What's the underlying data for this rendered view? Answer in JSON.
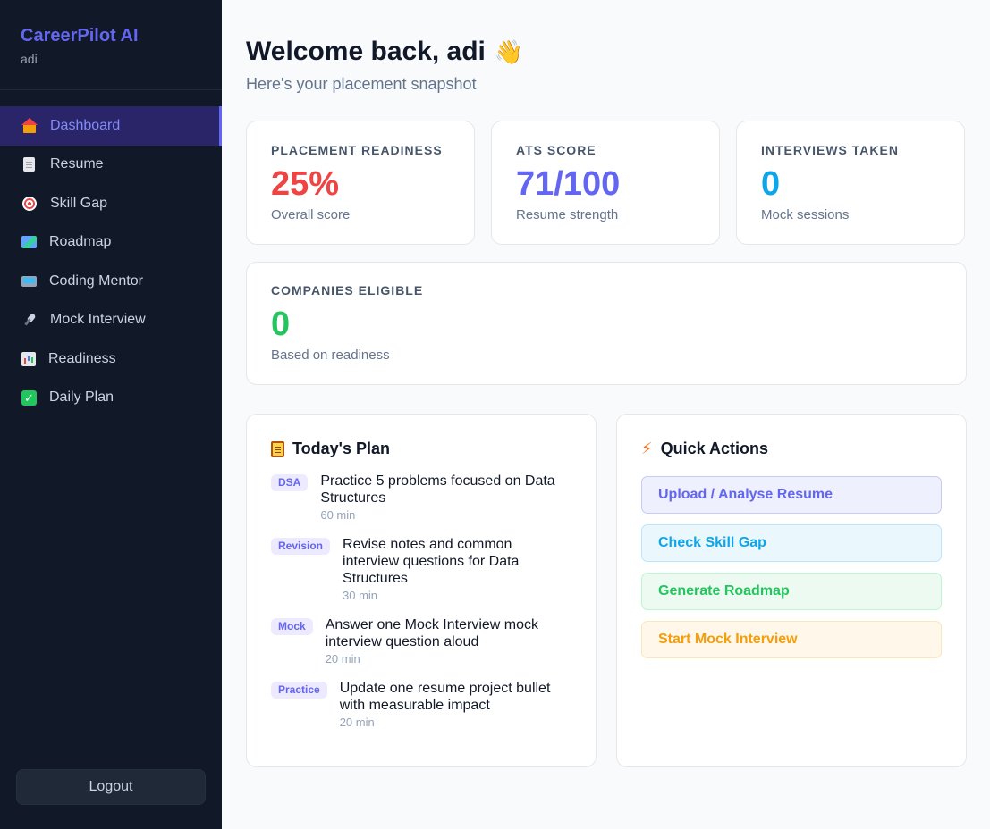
{
  "sidebar": {
    "brand": "CareerPilot AI",
    "user": "adi",
    "items": [
      {
        "label": "Dashboard",
        "icon": "home-icon",
        "active": true
      },
      {
        "label": "Resume",
        "icon": "document-icon"
      },
      {
        "label": "Skill Gap",
        "icon": "target-icon"
      },
      {
        "label": "Roadmap",
        "icon": "map-icon"
      },
      {
        "label": "Coding Mentor",
        "icon": "laptop-icon"
      },
      {
        "label": "Mock Interview",
        "icon": "microphone-icon"
      },
      {
        "label": "Readiness",
        "icon": "bar-chart-icon"
      },
      {
        "label": "Daily Plan",
        "icon": "checkmark-icon"
      }
    ],
    "logout": "Logout"
  },
  "header": {
    "title": "Welcome back, adi",
    "wave": "👋",
    "subtitle": "Here's your placement snapshot"
  },
  "stats": [
    {
      "label": "Placement Readiness",
      "value": "25%",
      "sub": "Overall score",
      "color": "#ef4444"
    },
    {
      "label": "ATS Score",
      "value": "71/100",
      "sub": "Resume strength",
      "color": "#6366f1"
    },
    {
      "label": "Interviews Taken",
      "value": "0",
      "sub": "Mock sessions",
      "color": "#0ea5e9"
    }
  ],
  "companies": {
    "label": "Companies Eligible",
    "value": "0",
    "sub": "Based on readiness",
    "color": "#22c55e"
  },
  "plan": {
    "title": "Today's Plan",
    "items": [
      {
        "tag": "DSA",
        "text": "Practice 5 problems focused on Data Structures",
        "time": "60 min"
      },
      {
        "tag": "Revision",
        "text": "Revise notes and common interview questions for Data Structures",
        "time": "30 min"
      },
      {
        "tag": "Mock",
        "text": "Answer one Mock Interview mock interview question aloud",
        "time": "20 min"
      },
      {
        "tag": "Practice",
        "text": "Update one resume project bullet with measurable impact",
        "time": "20 min"
      }
    ]
  },
  "actions": {
    "title": "Quick Actions",
    "items": [
      {
        "label": "Upload / Analyse Resume",
        "color": "#6366f1",
        "bg": "#eef0fd",
        "border": "#c7cbf6"
      },
      {
        "label": "Check Skill Gap",
        "color": "#0ea5e9",
        "bg": "#eaf7fd",
        "border": "#bae6fd"
      },
      {
        "label": "Generate Roadmap",
        "color": "#22c55e",
        "bg": "#edfaf1",
        "border": "#bbf7d0"
      },
      {
        "label": "Start Mock Interview",
        "color": "#f59e0b",
        "bg": "#fef7ea",
        "border": "#fde7b8"
      }
    ]
  }
}
